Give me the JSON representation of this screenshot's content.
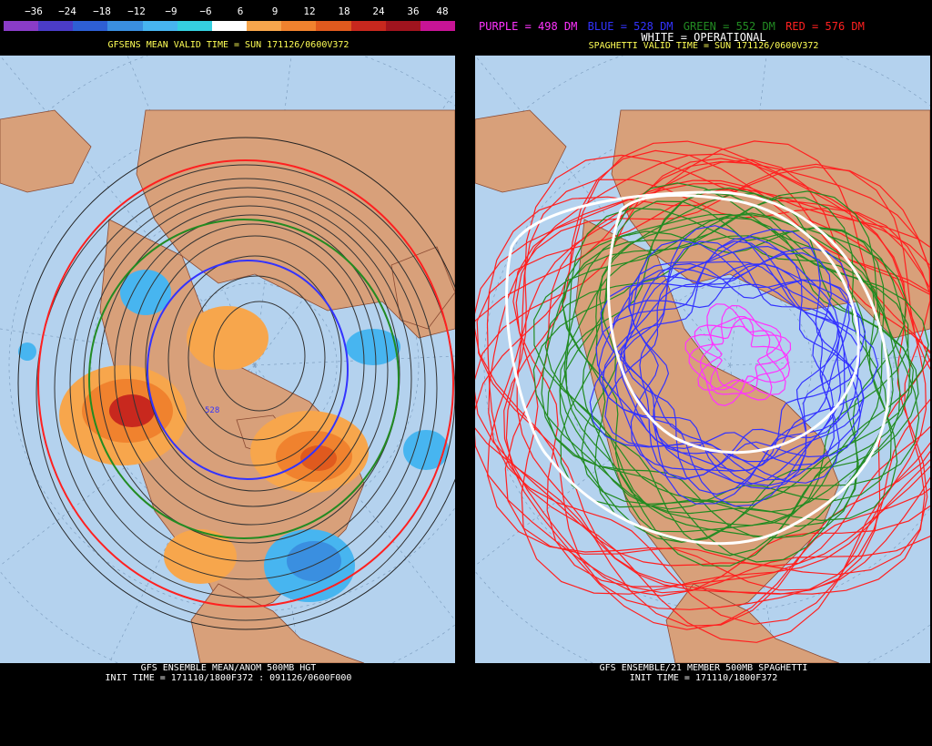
{
  "left_panel": {
    "scale_labels": [
      "−36",
      "−24",
      "−18",
      "−12",
      "−9",
      "−6",
      "6",
      "9",
      "12",
      "18",
      "24",
      "36",
      "48"
    ],
    "scale_colors": [
      "#8a3cc8",
      "#4b3cc8",
      "#2e5fd4",
      "#3a8fe0",
      "#47b5f0",
      "#35d0e0",
      "#ffffff",
      "#f7a64c",
      "#f0822e",
      "#e05a1e",
      "#c8281e",
      "#a0141e",
      "#c81496"
    ],
    "subtitle": "GFSENS MEAN VALID TIME = SUN 171126/0600V372",
    "contour_label": "528",
    "bottom_line1": "GFS ENSEMBLE MEAN/ANOM 500MB HGT",
    "bottom_line2": "INIT TIME = 171110/1800F372 : 091126/0600F000"
  },
  "right_panel": {
    "legend": {
      "purple": "PURPLE = 498 DM",
      "blue": "BLUE = 528 DM",
      "green": "GREEN = 552 DM",
      "red": "RED = 576 DM"
    },
    "operational": "WHITE = OPERATIONAL",
    "subtitle": "SPAGHETTI VALID TIME = SUN 171126/0600V372",
    "bottom_line1": "GFS ENSEMBLE/21 MEMBER 500MB SPAGHETTI",
    "bottom_line2": "INIT TIME = 171110/1800F372"
  },
  "colors": {
    "ocean": "#b4d2ee",
    "land": "#d8a07a",
    "purple": "#ff33ff",
    "blue": "#3333ff",
    "green": "#228b22",
    "red": "#ff2020",
    "white": "#ffffff"
  }
}
